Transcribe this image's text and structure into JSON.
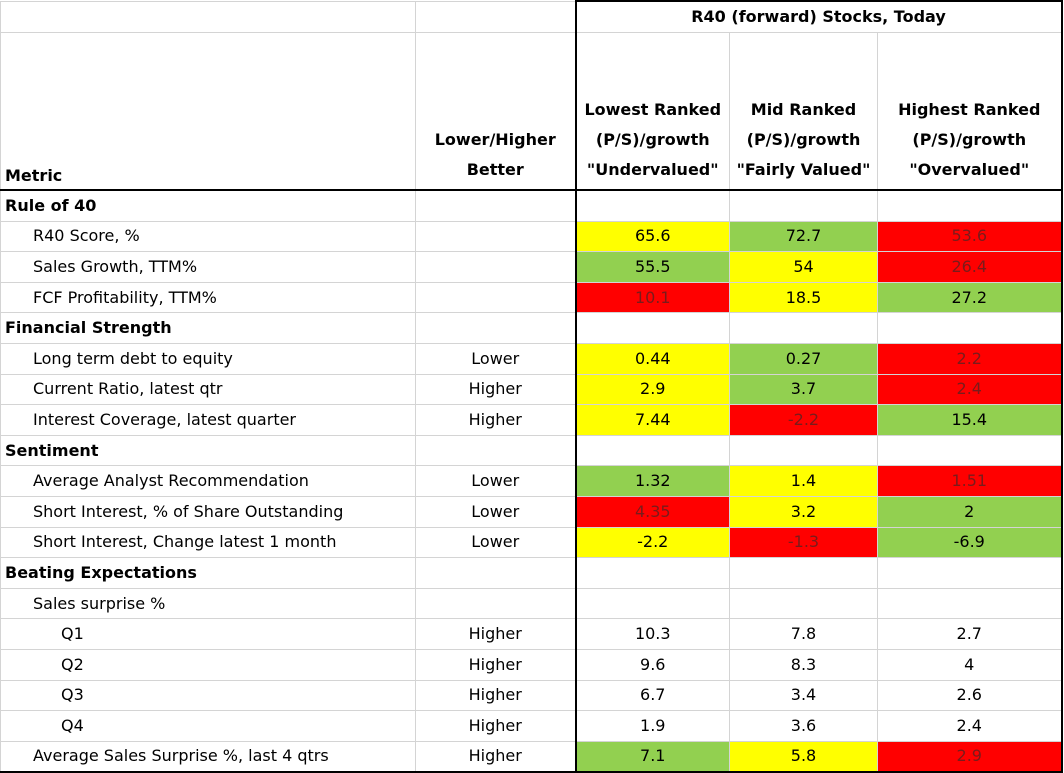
{
  "group_header": "R40 (forward) Stocks, Today",
  "headers": {
    "metric": "Metric",
    "lower_higher": "Lower/Higher Better",
    "lowest": [
      "Lowest Ranked",
      "(P/S)/growth",
      "\"Undervalued\""
    ],
    "mid": [
      "Mid Ranked",
      "(P/S)/growth",
      "\"Fairly Valued\""
    ],
    "highest": [
      "Highest Ranked",
      "(P/S)/growth",
      "\"Overvalued\""
    ]
  },
  "colors": {
    "yellow": "#ffff00",
    "green": "#92d050",
    "red": "#ff0000"
  },
  "rows": [
    {
      "label": "Rule of 40",
      "type": "section"
    },
    {
      "label": "R40 Score, %",
      "type": "item",
      "lh": "",
      "values": [
        "65.6",
        "72.7",
        "53.6"
      ],
      "colors": [
        "yellow",
        "green",
        "red"
      ]
    },
    {
      "label": "Sales Growth, TTM%",
      "type": "item",
      "lh": "",
      "values": [
        "55.5",
        "54",
        "26.4"
      ],
      "colors": [
        "green",
        "yellow",
        "red"
      ]
    },
    {
      "label": "FCF Profitability, TTM%",
      "type": "item",
      "lh": "",
      "values": [
        "10.1",
        "18.5",
        "27.2"
      ],
      "colors": [
        "red",
        "yellow",
        "green"
      ]
    },
    {
      "label": "Financial Strength",
      "type": "section"
    },
    {
      "label": "Long term debt to equity",
      "type": "item",
      "lh": "Lower",
      "values": [
        "0.44",
        "0.27",
        "2.2"
      ],
      "colors": [
        "yellow",
        "green",
        "red"
      ]
    },
    {
      "label": "Current Ratio, latest qtr",
      "type": "item",
      "lh": "Higher",
      "values": [
        "2.9",
        "3.7",
        "2.4"
      ],
      "colors": [
        "yellow",
        "green",
        "red"
      ]
    },
    {
      "label": "Interest Coverage, latest quarter",
      "type": "item",
      "lh": "Higher",
      "values": [
        "7.44",
        "-2.2",
        "15.4"
      ],
      "colors": [
        "yellow",
        "red",
        "green"
      ]
    },
    {
      "label": "Sentiment",
      "type": "section"
    },
    {
      "label": "Average Analyst Recommendation",
      "type": "item",
      "lh": "Lower",
      "values": [
        "1.32",
        "1.4",
        "1.51"
      ],
      "colors": [
        "green",
        "yellow",
        "red"
      ]
    },
    {
      "label": "Short Interest, % of Share Outstanding",
      "type": "item",
      "lh": "Lower",
      "values": [
        "4.35",
        "3.2",
        "2"
      ],
      "colors": [
        "red",
        "yellow",
        "green"
      ]
    },
    {
      "label": "Short Interest, Change latest 1 month",
      "type": "item",
      "lh": "Lower",
      "values": [
        "-2.2",
        "-1.3",
        "-6.9"
      ],
      "colors": [
        "yellow",
        "red",
        "green"
      ]
    },
    {
      "label": "Beating Expectations",
      "type": "section"
    },
    {
      "label": "Sales surprise %",
      "type": "item",
      "lh": "",
      "values": [
        "",
        "",
        ""
      ],
      "colors": [
        "",
        "",
        ""
      ]
    },
    {
      "label": "Q1",
      "type": "sub",
      "lh": "Higher",
      "values": [
        "10.3",
        "7.8",
        "2.7"
      ],
      "colors": [
        "",
        "",
        ""
      ]
    },
    {
      "label": "Q2",
      "type": "sub",
      "lh": "Higher",
      "values": [
        "9.6",
        "8.3",
        "4"
      ],
      "colors": [
        "",
        "",
        ""
      ]
    },
    {
      "label": "Q3",
      "type": "sub",
      "lh": "Higher",
      "values": [
        "6.7",
        "3.4",
        "2.6"
      ],
      "colors": [
        "",
        "",
        ""
      ]
    },
    {
      "label": "Q4",
      "type": "sub",
      "lh": "Higher",
      "values": [
        "1.9",
        "3.6",
        "2.4"
      ],
      "colors": [
        "",
        "",
        ""
      ]
    },
    {
      "label": "Average Sales Surprise %, last 4 qtrs",
      "type": "item",
      "lh": "Higher",
      "values": [
        "7.1",
        "5.8",
        "2.9"
      ],
      "colors": [
        "green",
        "yellow",
        "red"
      ]
    }
  ]
}
